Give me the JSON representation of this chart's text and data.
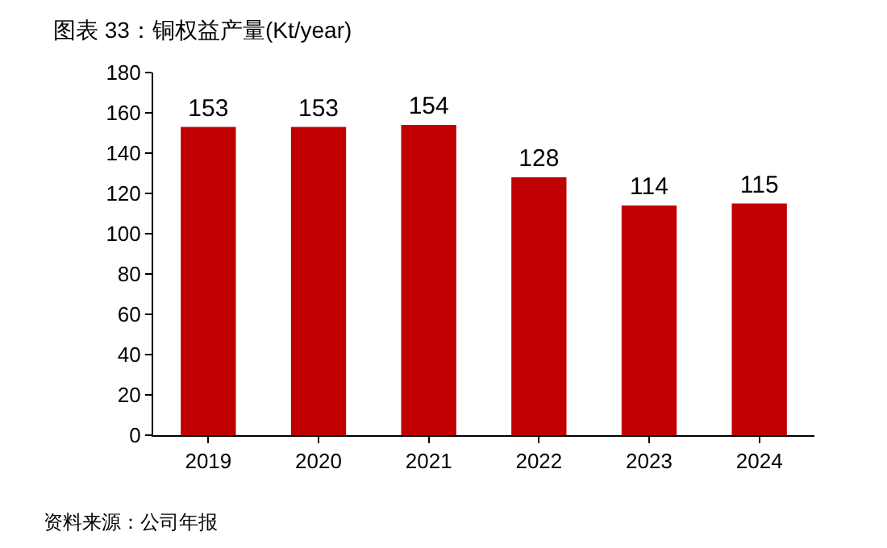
{
  "chart_data": {
    "type": "bar",
    "title": "图表 33：铜权益产量(Kt/year)",
    "categories": [
      "2019",
      "2020",
      "2021",
      "2022",
      "2023",
      "2024"
    ],
    "values": [
      153,
      153,
      154,
      128,
      114,
      115
    ],
    "color": "#c00000",
    "ylim": [
      0,
      180
    ],
    "yticks": [
      0,
      20,
      40,
      60,
      80,
      100,
      120,
      140,
      160,
      180
    ],
    "grid": false,
    "data_labels": true,
    "annotations": [
      "资料来源：公司年报"
    ]
  }
}
